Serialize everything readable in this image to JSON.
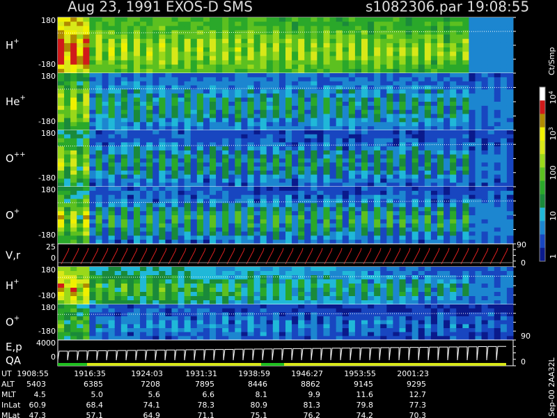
{
  "header": {
    "title": "Aug 23, 1991   EXOS-D SMS",
    "file": "s1082306.par  19:08:55"
  },
  "panels": [
    {
      "label": "H",
      "charge": "+",
      "top": "180",
      "bottom": "-180"
    },
    {
      "label": "He",
      "charge": "+",
      "top": "180",
      "bottom": "-180"
    },
    {
      "label": "O",
      "charge": "++",
      "top": "180",
      "bottom": "-180"
    },
    {
      "label": "O",
      "charge": "+",
      "top": "180",
      "bottom": "-180"
    },
    {
      "label": "V,r",
      "top": "25",
      "bottom": "0",
      "right_top": "90",
      "right_bottom": "0"
    },
    {
      "label": "H",
      "charge": "+",
      "top": "180",
      "bottom": "-180"
    },
    {
      "label": "O",
      "charge": "+",
      "top": "180",
      "bottom": "-180",
      "right_bottom": "90"
    },
    {
      "label": "E,p",
      "label2": "QA",
      "top": "4000",
      "bottom": "0",
      "right_bottom": "0"
    }
  ],
  "colorbar": {
    "unit": "Ct/Smp",
    "labels": [
      {
        "base": "10",
        "exp": "4"
      },
      {
        "base": "10",
        "exp": "3"
      },
      {
        "base": "100"
      },
      {
        "base": "10"
      },
      {
        "base": "1"
      }
    ]
  },
  "footer": {
    "rows": [
      {
        "label": "UT",
        "values": [
          "1908:55",
          "1916:35",
          "1924:03",
          "1931:31",
          "1938:59",
          "1946:27",
          "1953:55",
          "2001:23"
        ]
      },
      {
        "label": "ALT",
        "values": [
          "5403",
          "6385",
          "7208",
          "7895",
          "8446",
          "8862",
          "9145",
          "9295"
        ]
      },
      {
        "label": "MLT",
        "values": [
          "4.5",
          "5.0",
          "5.6",
          "6.6",
          "8.1",
          "9.9",
          "11.6",
          "12.7"
        ]
      },
      {
        "label": "InLat",
        "values": [
          "60.9",
          "68.4",
          "74.1",
          "78.3",
          "80.9",
          "81.3",
          "79.8",
          "77.3"
        ]
      },
      {
        "label": "MLat",
        "values": [
          "47.3",
          "57.1",
          "64.9",
          "71.1",
          "75.1",
          "76.2",
          "74.2",
          "70.3"
        ]
      }
    ]
  },
  "version": "Sep-00  2AA32L"
}
